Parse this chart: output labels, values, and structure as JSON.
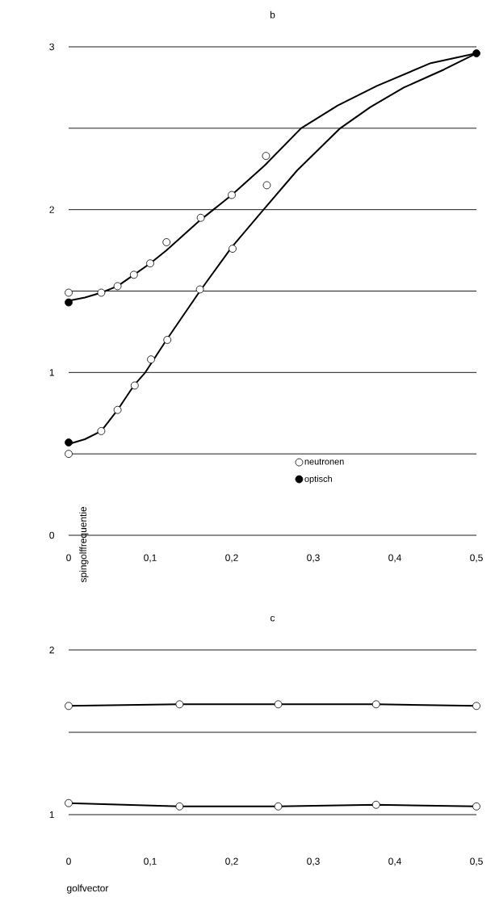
{
  "chart_data": [
    {
      "type": "scatter",
      "title": "b",
      "ylabel": "spingolffrequentie",
      "xlim": [
        0,
        0.5
      ],
      "ylim": [
        0,
        3
      ],
      "xticks": [
        0,
        {
          "value": 0.1,
          "label": "0,1"
        },
        {
          "value": 0.2,
          "label": "0,2"
        },
        {
          "value": 0.3,
          "label": "0,3"
        },
        {
          "value": 0.4,
          "label": "0,4"
        },
        {
          "value": 0.5,
          "label": "0,5"
        }
      ],
      "yticks": [
        0,
        {
          "value": 0.5,
          "label": null
        },
        1,
        {
          "value": 1.5,
          "label": null
        },
        2,
        {
          "value": 2.5,
          "label": null
        },
        3
      ],
      "grid": "y",
      "legend": "bottom right",
      "marker": "circle",
      "series": [
        {
          "type": "line",
          "marker": "none",
          "color": "#000000",
          "x": [
            0,
            0.02,
            0.04,
            0.06,
            0.08,
            0.1,
            0.12,
            0.14,
            0.16,
            0.18,
            0.2,
            0.24,
            0.285,
            0.33,
            0.378,
            0.444,
            0.5
          ],
          "values": [
            1.44,
            1.46,
            1.49,
            1.53,
            1.6,
            1.67,
            1.75,
            1.84,
            1.93,
            2.01,
            2.09,
            2.27,
            2.5,
            2.64,
            2.76,
            2.9,
            2.96
          ]
        },
        {
          "type": "line",
          "marker": "none",
          "color": "#000000",
          "x": [
            0,
            0.02,
            0.04,
            0.06,
            0.08,
            0.094,
            0.12,
            0.161,
            0.2,
            0.239,
            0.28,
            0.333,
            0.37,
            0.411,
            0.46,
            0.5
          ],
          "values": [
            0.56,
            0.59,
            0.64,
            0.77,
            0.92,
            1.0,
            1.2,
            1.5,
            1.77,
            2.0,
            2.24,
            2.5,
            2.63,
            2.75,
            2.86,
            2.96
          ]
        },
        {
          "name": "neutronen",
          "color": "#ffffff",
          "x": [
            0,
            0.04,
            0.06,
            0.08,
            0.1,
            0.12,
            0.162,
            0.2,
            0.242,
            0.243,
            0,
            0.04,
            0.06,
            0.081,
            0.101,
            0.121,
            0.161,
            0.201
          ],
          "values": [
            1.49,
            1.49,
            1.53,
            1.6,
            1.67,
            1.8,
            1.95,
            2.09,
            2.33,
            2.15,
            0.5,
            0.64,
            0.77,
            0.92,
            1.08,
            1.2,
            1.51,
            1.76
          ]
        },
        {
          "name": "optisch",
          "color": "#000000",
          "x": [
            0,
            0,
            0.5
          ],
          "values": [
            1.43,
            0.57,
            2.96
          ]
        }
      ]
    },
    {
      "type": "line",
      "title": "c",
      "xlabel": "golfvector",
      "xlim": [
        0,
        0.5
      ],
      "ylim": [
        1,
        2
      ],
      "xticks": [
        0,
        {
          "value": 0.1,
          "label": "0,1"
        },
        {
          "value": 0.2,
          "label": "0,2"
        },
        {
          "value": 0.3,
          "label": "0,3"
        },
        {
          "value": 0.4,
          "label": "0,4"
        },
        {
          "value": 0.5,
          "label": "0,5"
        }
      ],
      "yticks": [
        1,
        {
          "value": 1.5,
          "label": null
        },
        2
      ],
      "grid": "y",
      "marker": "circle",
      "series": [
        {
          "color": "#000000",
          "x": [
            0,
            0.136,
            0.257,
            0.377,
            0.5
          ],
          "values": [
            1.66,
            1.67,
            1.67,
            1.67,
            1.66
          ]
        },
        {
          "color": "#000000",
          "x": [
            0,
            0.136,
            0.257,
            0.377,
            0.5
          ],
          "values": [
            1.07,
            1.05,
            1.05,
            1.06,
            1.05
          ]
        }
      ]
    }
  ]
}
